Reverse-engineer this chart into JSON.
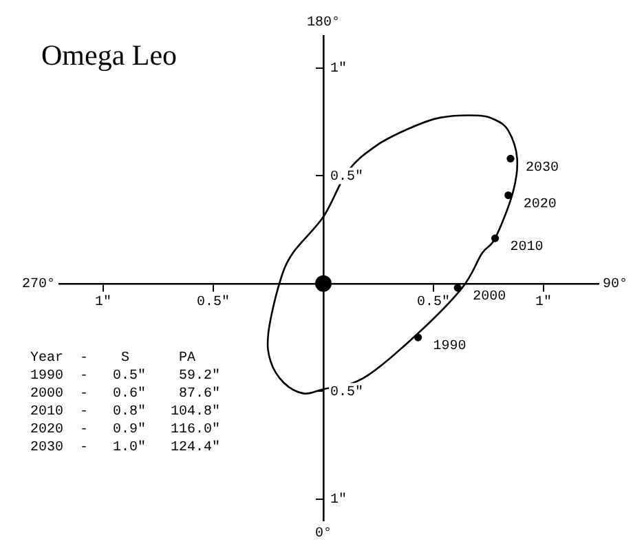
{
  "chart_data": {
    "type": "scatter",
    "title": "Omega Leo",
    "xlim": [
      -1.2,
      1.25
    ],
    "ylim": [
      -1.1,
      1.15
    ],
    "xticks": [
      {
        "value": -1,
        "label": "1\""
      },
      {
        "value": -0.5,
        "label": "0.5\""
      },
      {
        "value": 0.5,
        "label": "0.5\""
      },
      {
        "value": 1,
        "label": "1\""
      }
    ],
    "yticks": [
      {
        "value": -1,
        "label": "1\""
      },
      {
        "value": -0.5,
        "label": "0.5\""
      },
      {
        "value": 0.5,
        "label": "0.5\""
      },
      {
        "value": 1,
        "label": "1\""
      }
    ],
    "grid": false,
    "legend": false,
    "series": [
      {
        "type": "scatter",
        "marker": "circle",
        "color": "#000000",
        "name": "1990",
        "x": [
          0.43
        ],
        "values": [
          -0.25
        ]
      },
      {
        "type": "scatter",
        "marker": "circle",
        "color": "#000000",
        "name": "2000",
        "x": [
          0.61
        ],
        "values": [
          -0.02
        ]
      },
      {
        "type": "scatter",
        "marker": "circle",
        "color": "#000000",
        "name": "2010",
        "x": [
          0.78
        ],
        "values": [
          0.21
        ]
      },
      {
        "type": "scatter",
        "marker": "circle",
        "color": "#000000",
        "name": "2020",
        "x": [
          0.84
        ],
        "values": [
          0.41
        ]
      },
      {
        "type": "scatter",
        "marker": "circle",
        "color": "#000000",
        "name": "2030",
        "x": [
          0.85
        ],
        "values": [
          0.58
        ]
      },
      {
        "type": "scatter",
        "marker": "circle",
        "color": "#000000",
        "x": [
          0
        ],
        "values": [
          0
        ]
      }
    ],
    "annotations": [
      "180°",
      "0°",
      "270°",
      "90°",
      "Year  -    S      PA",
      "1990  -   0.5\"    59.2\"",
      "2000  -   0.6\"    87.6\"",
      "2010  -   0.8\"   104.8\"",
      "2020  -   0.9\"   116.0\"",
      "2030  -   1.0\"   124.4\""
    ]
  }
}
